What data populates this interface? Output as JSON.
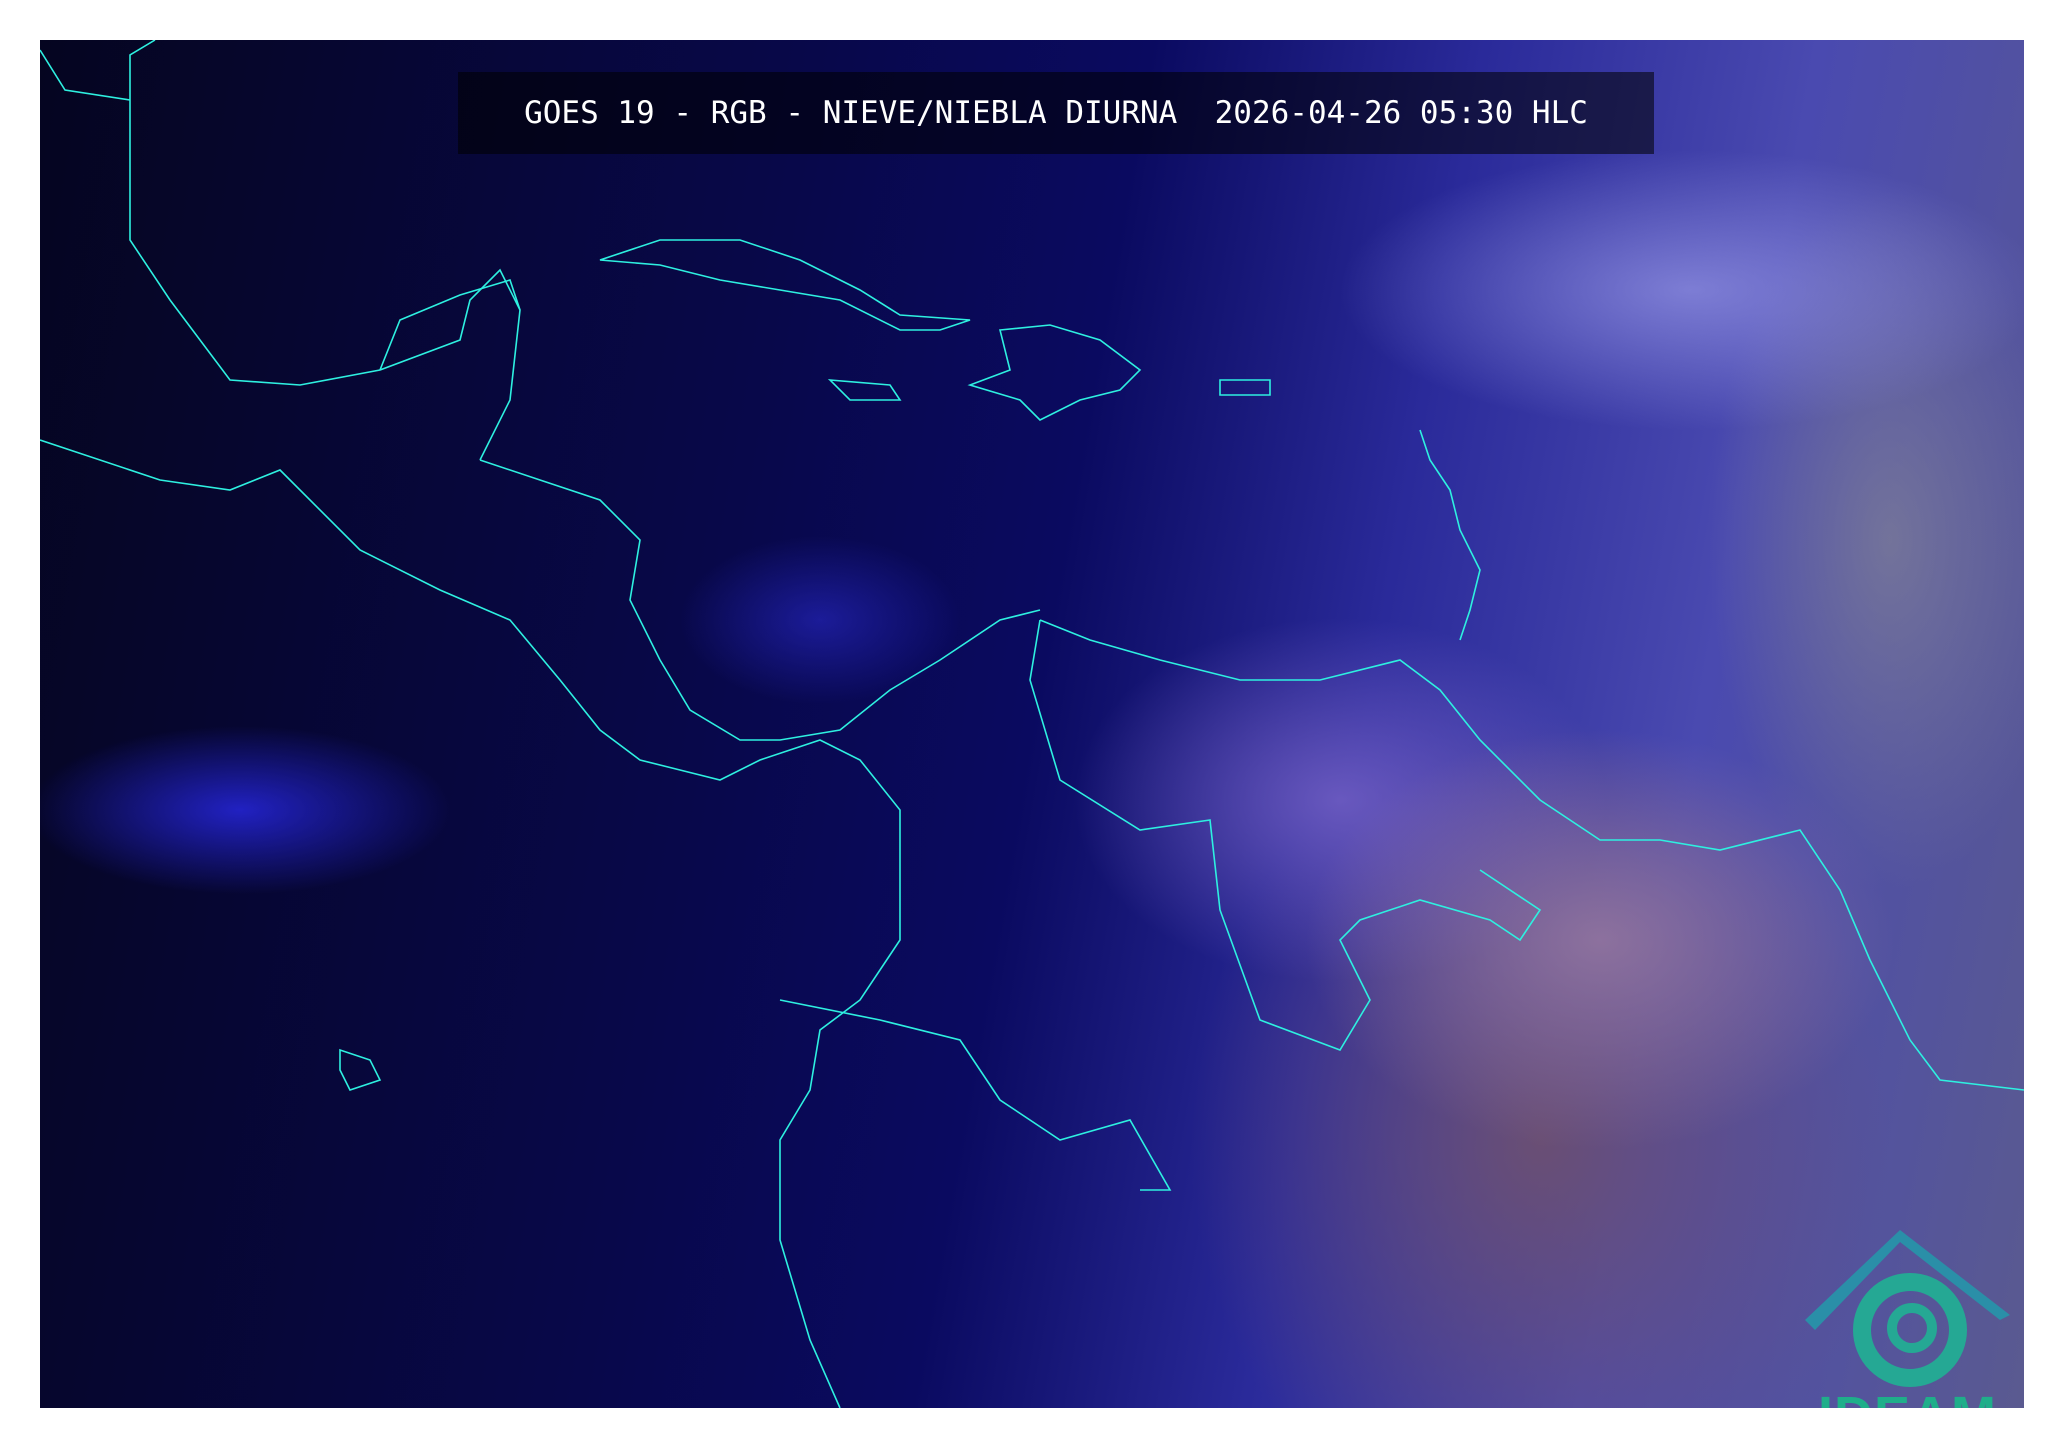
{
  "title": "GOES 19 - RGB - NIEVE/NIEBLA DIURNA  2026-04-26 05:30 HLC",
  "satellite": "GOES 19",
  "product": "RGB - NIEVE/NIEBLA DIURNA",
  "datetime": "2026-04-26 05:30 HLC",
  "logo": {
    "text": "IDEAM",
    "color": "#1fae8a"
  },
  "colors": {
    "coastline": "#2ef0e0",
    "ocean": "#08084a"
  }
}
